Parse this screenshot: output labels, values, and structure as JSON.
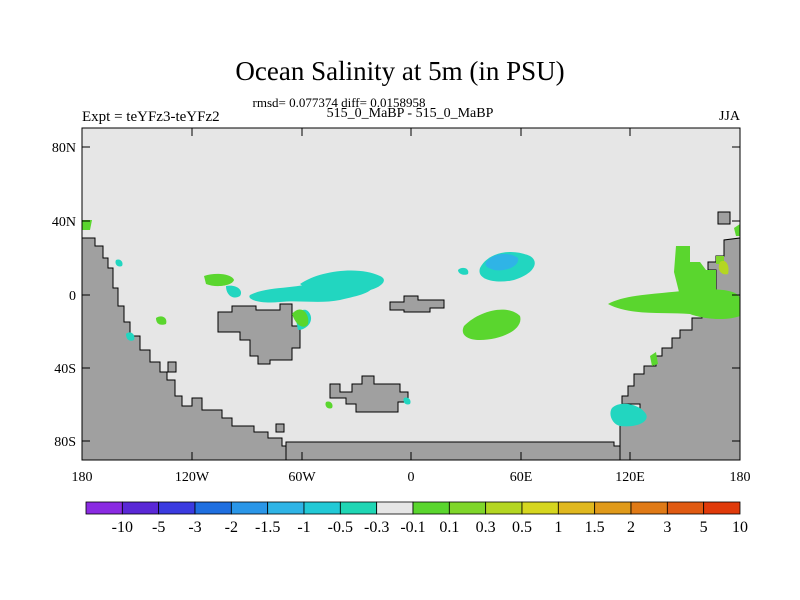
{
  "title": "Ocean Salinity at 5m (in PSU)",
  "subtitle_stats": "rmsd= 0.077374 diff= 0.0158958",
  "experiment": "Expt = teYFz3-teYFz2",
  "case_label": "515_0_MaBP - 515_0_MaBP",
  "season": "JJA",
  "y_ticks": [
    "80N",
    "40N",
    "0",
    "40S",
    "80S"
  ],
  "x_ticks": [
    "180",
    "120W",
    "60W",
    "0",
    "60E",
    "120E",
    "180"
  ],
  "colorbar": {
    "colors": [
      "#8a2be2",
      "#5a28d6",
      "#3b3be0",
      "#1f6fe0",
      "#2a96e8",
      "#2fb4e6",
      "#22c9d6",
      "#1fd6b4",
      "#e6e6e6",
      "#5ad62e",
      "#7fd62a",
      "#b4d622",
      "#d6d61f",
      "#e0b81f",
      "#e09a1a",
      "#e07a16",
      "#e05a12",
      "#e03a0a"
    ],
    "labels": [
      "-10",
      "-5",
      "-3",
      "-2",
      "-1.5",
      "-1",
      "-0.5",
      "-0.3",
      "-0.1",
      "0.1",
      "0.3",
      "0.5",
      "1",
      "1.5",
      "2",
      "3",
      "5",
      "10"
    ]
  },
  "colors": {
    "land": "#a0a0a0",
    "background": "#e6e6e6",
    "positive_anomaly": "#6ad636",
    "negative_anomaly": "#22d6c0"
  }
}
